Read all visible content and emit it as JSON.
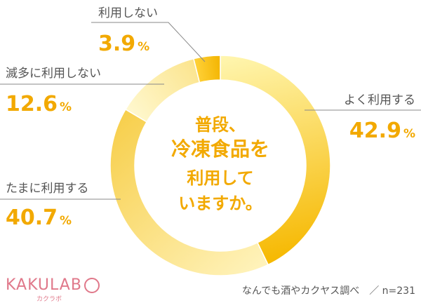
{
  "chart_data": {
    "type": "pie",
    "center_title_lines": [
      "普段、",
      "冷凍食品を",
      "利用して",
      "いますか。"
    ],
    "slices": [
      {
        "label": "よく利用する",
        "value": 42.9,
        "color_light": "#fff6b0",
        "color_dark": "#f6b800"
      },
      {
        "label": "たまに利用する",
        "value": 40.7,
        "color_light": "#fff3bc",
        "color_dark": "#f7cf4c"
      },
      {
        "label": "滅多に利用しない",
        "value": 12.6,
        "color_light": "#fff8cf",
        "color_dark": "#fbe48d"
      },
      {
        "label": "利用しない",
        "value": 3.9,
        "color_light": "#ffd23a",
        "color_dark": "#f3b400"
      }
    ],
    "percent_sign": "%"
  },
  "footer": {
    "logo_text": "KAKULAB",
    "logo_sub": "カクラボ",
    "source": "なんでも酒やカクヤス調べ　／ n=231"
  },
  "colors": {
    "accent": "#f2a900",
    "line": "#888888",
    "logo": "#e0788a"
  }
}
